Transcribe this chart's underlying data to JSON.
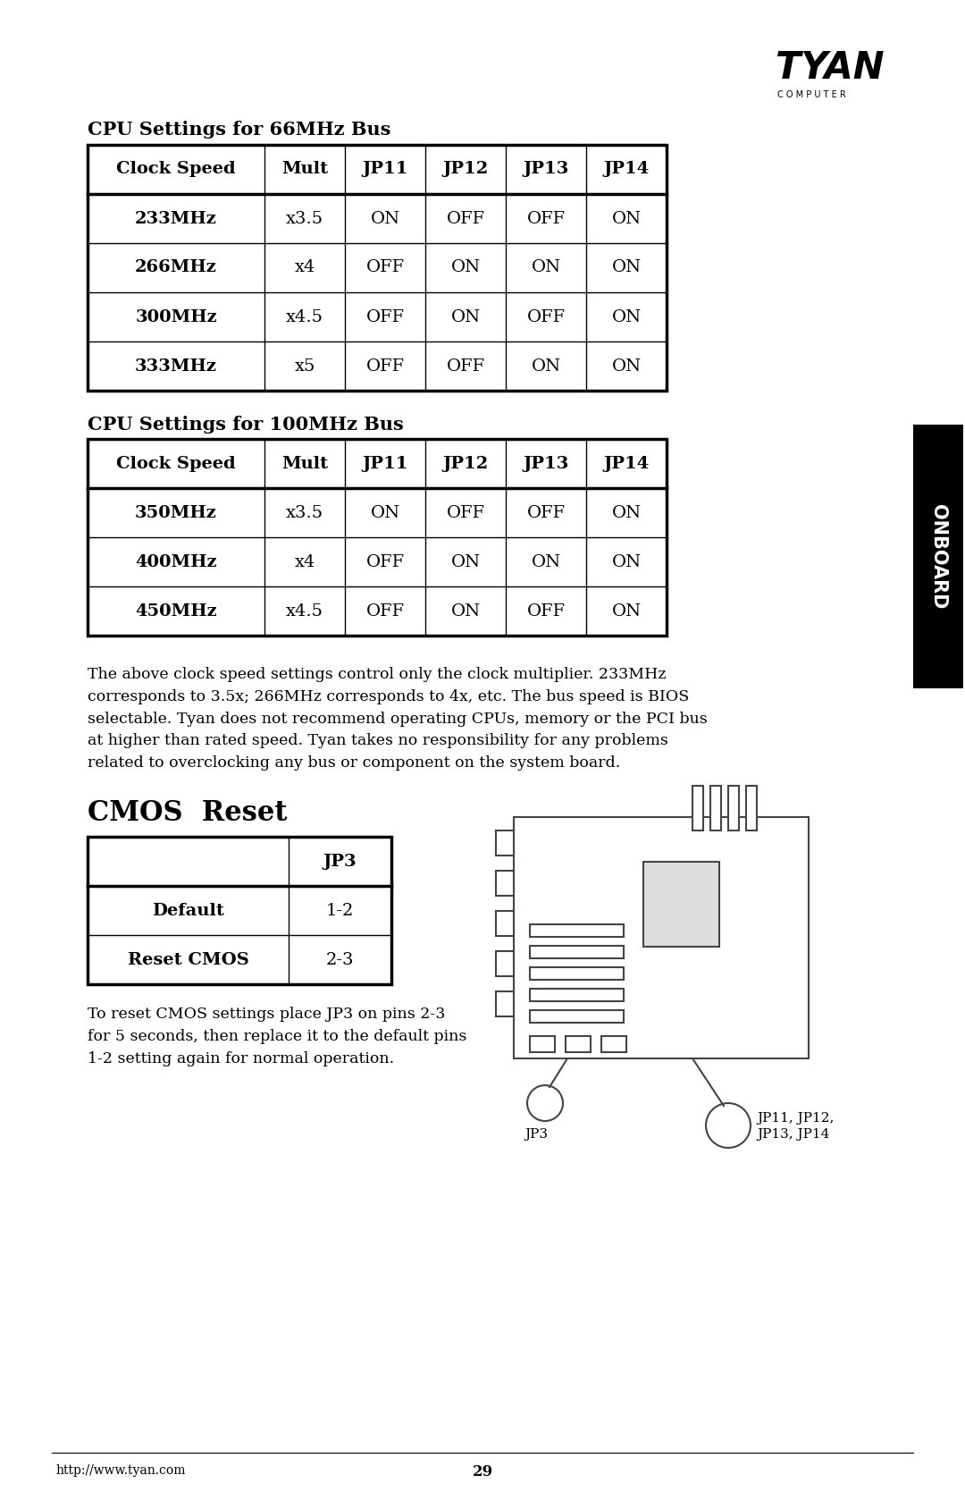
{
  "bg_color": "#ffffff",
  "text_color": "#000000",
  "page_width": 10.8,
  "page_height": 16.69,
  "table1_title": "CPU Settings for 66MHz Bus",
  "table1_headers": [
    "Clock Speed",
    "Mult",
    "JP11",
    "JP12",
    "JP13",
    "JP14"
  ],
  "table1_data": [
    [
      "233MHz",
      "x3.5",
      "ON",
      "OFF",
      "OFF",
      "ON"
    ],
    [
      "266MHz",
      "x4",
      "OFF",
      "ON",
      "ON",
      "ON"
    ],
    [
      "300MHz",
      "x4.5",
      "OFF",
      "ON",
      "OFF",
      "ON"
    ],
    [
      "333MHz",
      "x5",
      "OFF",
      "OFF",
      "ON",
      "ON"
    ]
  ],
  "table2_title": "CPU Settings for 100MHz Bus",
  "table2_headers": [
    "Clock Speed",
    "Mult",
    "JP11",
    "JP12",
    "JP13",
    "JP14"
  ],
  "table2_data": [
    [
      "350MHz",
      "x3.5",
      "ON",
      "OFF",
      "OFF",
      "ON"
    ],
    [
      "400MHz",
      "x4",
      "OFF",
      "ON",
      "ON",
      "ON"
    ],
    [
      "450MHz",
      "x4.5",
      "OFF",
      "ON",
      "OFF",
      "ON"
    ]
  ],
  "body_text": "The above clock speed settings control only the clock multiplier. 233MHz\ncorresponds to 3.5x; 266MHz corresponds to 4x, etc. The bus speed is BIOS\nselectable. Tyan does not recommend operating CPUs, memory or the PCI bus\nat higher than rated speed. Tyan takes no responsibility for any problems\nrelated to overclocking any bus or component on the system board.",
  "cmos_title": "CMOS  Reset",
  "cmos_headers": [
    "",
    "JP3"
  ],
  "cmos_data": [
    [
      "Default",
      "1-2"
    ],
    [
      "Reset CMOS",
      "2-3"
    ]
  ],
  "cmos_text": "To reset CMOS settings place JP3 on pins 2-3\nfor 5 seconds, then replace it to the default pins\n1-2 setting again for normal operation.",
  "onboard_label": "ONBOARD",
  "footer_url": "http://www.tyan.com",
  "footer_page": "29",
  "tyan_text": "TYAN",
  "computer_text": "C O M P U T E R"
}
